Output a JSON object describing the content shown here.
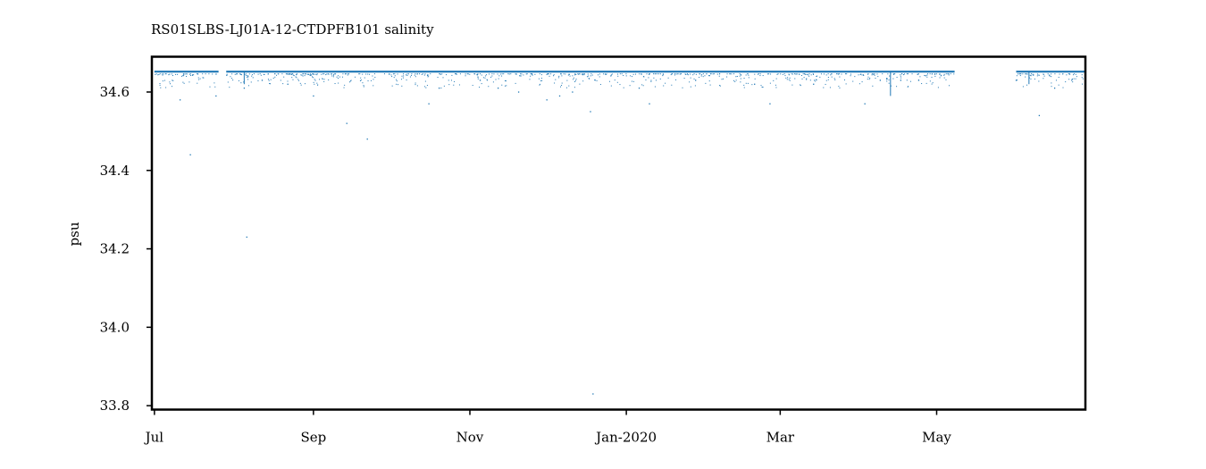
{
  "chart_data": {
    "type": "scatter",
    "title": "RS01SLBS-LJ01A-12-CTDPFB101 salinity",
    "xlabel": "",
    "ylabel": "psu",
    "x_ticks": [
      "Jul",
      "Sep",
      "Nov",
      "Jan-2020",
      "Mar",
      "May"
    ],
    "x_tick_dates": [
      "2019-07-01",
      "2019-09-01",
      "2019-11-01",
      "2020-01-01",
      "2020-03-01",
      "2020-05-01"
    ],
    "xlim": [
      "2019-06-30",
      "2020-06-28"
    ],
    "ylim": [
      33.79,
      34.69
    ],
    "y_ticks": [
      33.8,
      34.0,
      34.2,
      34.4,
      34.6
    ],
    "grid": false,
    "series_color": "#1f77b4",
    "series": [
      {
        "baseline_value": 34.652,
        "baseline_segments": [
          [
            "2019-07-01",
            "2019-07-26"
          ],
          [
            "2019-07-29",
            "2020-05-08"
          ],
          [
            "2020-06-01",
            "2020-06-28"
          ]
        ],
        "outliers": [
          {
            "x": "2019-07-11",
            "y": 34.58
          },
          {
            "x": "2019-07-15",
            "y": 34.44
          },
          {
            "x": "2019-07-25",
            "y": 34.59
          },
          {
            "x": "2019-08-06",
            "y": 34.23
          },
          {
            "x": "2019-08-05",
            "y": 34.61
          },
          {
            "x": "2019-08-12",
            "y": 34.63
          },
          {
            "x": "2019-08-22",
            "y": 34.62
          },
          {
            "x": "2019-09-01",
            "y": 34.59
          },
          {
            "x": "2019-09-14",
            "y": 34.52
          },
          {
            "x": "2019-09-22",
            "y": 34.48
          },
          {
            "x": "2019-10-16",
            "y": 34.57
          },
          {
            "x": "2019-10-20",
            "y": 34.61
          },
          {
            "x": "2019-11-05",
            "y": 34.63
          },
          {
            "x": "2019-11-12",
            "y": 34.61
          },
          {
            "x": "2019-11-20",
            "y": 34.6
          },
          {
            "x": "2019-12-01",
            "y": 34.58
          },
          {
            "x": "2019-12-06",
            "y": 34.59
          },
          {
            "x": "2019-12-11",
            "y": 34.6
          },
          {
            "x": "2019-12-18",
            "y": 34.55
          },
          {
            "x": "2019-12-19",
            "y": 33.83
          },
          {
            "x": "2020-01-06",
            "y": 34.61
          },
          {
            "x": "2020-01-10",
            "y": 34.57
          },
          {
            "x": "2020-01-28",
            "y": 34.63
          },
          {
            "x": "2020-02-20",
            "y": 34.62
          },
          {
            "x": "2020-02-26",
            "y": 34.57
          },
          {
            "x": "2020-03-14",
            "y": 34.62
          },
          {
            "x": "2020-04-03",
            "y": 34.57
          },
          {
            "x": "2020-04-09",
            "y": 34.63
          },
          {
            "x": "2020-04-17",
            "y": 34.63
          },
          {
            "x": "2020-04-24",
            "y": 34.63
          },
          {
            "x": "2020-06-01",
            "y": 34.63
          },
          {
            "x": "2020-06-10",
            "y": 34.54
          },
          {
            "x": "2020-06-16",
            "y": 34.61
          }
        ],
        "spikes": [
          {
            "x": "2019-08-05",
            "min": 34.62
          },
          {
            "x": "2020-04-13",
            "min": 34.59
          },
          {
            "x": "2020-06-06",
            "min": 34.62
          }
        ]
      }
    ]
  }
}
